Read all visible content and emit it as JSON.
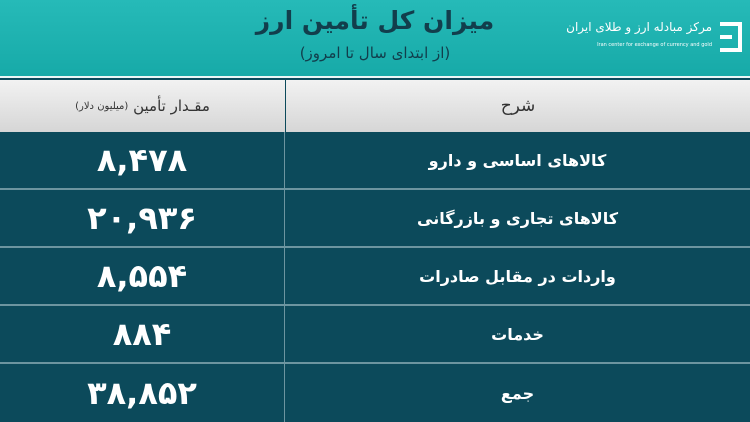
{
  "header": {
    "title": "میزان کل تأمین ارز",
    "subtitle": "(از ابتدای سال تا امروز)",
    "logo": {
      "fa": "مرکز مبادله ارز و طلای ایران",
      "en": "Iran center for exchange of currency and gold"
    }
  },
  "columns": {
    "amount": "مقـدار تأمین",
    "amount_unit": "(میلیون دلار)",
    "description": "شرح"
  },
  "rows": [
    {
      "description": "کالاهای اساسی و دارو",
      "amount": "۸,۴۷۸"
    },
    {
      "description": "کالاهای تجاری و بازرگانی",
      "amount": "۲۰,۹۳۶"
    },
    {
      "description": "واردات در مقابل صادرات",
      "amount": "۸,۵۵۴"
    },
    {
      "description": "خدمات",
      "amount": "۸۸۴"
    },
    {
      "description": "جمع",
      "amount": "۳۸,۸۵۲"
    }
  ],
  "colors": {
    "header": "#1fb3b1",
    "rows": "#0c4a5b",
    "column_header": "#e2e2e2"
  }
}
